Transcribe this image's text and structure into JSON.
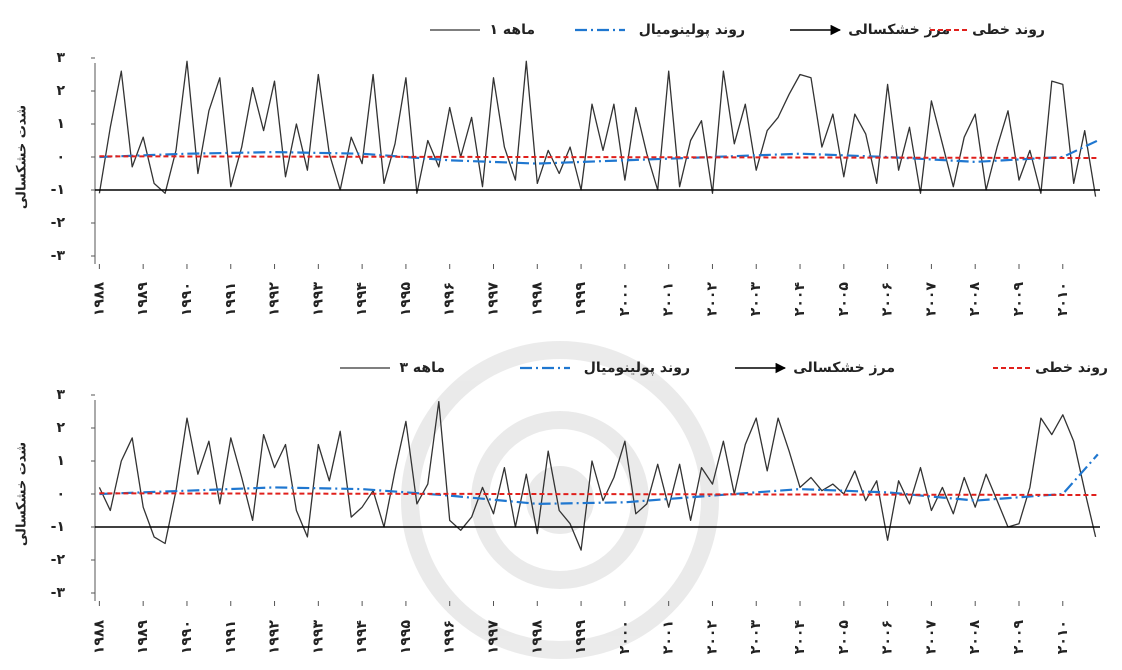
{
  "chart_data": [
    {
      "type": "line",
      "ylabel": "شدت خشکسالی",
      "xlim": [
        1987.9,
        2010.85
      ],
      "ylim": [
        -3,
        3
      ],
      "yticks": [
        {
          "value": 3,
          "label": "۳"
        },
        {
          "value": 2,
          "label": "۲"
        },
        {
          "value": 1,
          "label": "۱"
        },
        {
          "value": 0,
          "label": "۰"
        },
        {
          "value": -1,
          "label": "-۱"
        },
        {
          "value": -2,
          "label": "-۲"
        },
        {
          "value": -3,
          "label": "-۳"
        }
      ],
      "xticks": [
        {
          "value": 1988,
          "label": "۱۹۸۸"
        },
        {
          "value": 1989,
          "label": "۱۹۸۹"
        },
        {
          "value": 1990,
          "label": "۱۹۹۰"
        },
        {
          "value": 1991,
          "label": "۱۹۹۱"
        },
        {
          "value": 1992,
          "label": "۱۹۹۲"
        },
        {
          "value": 1993,
          "label": "۱۹۹۳"
        },
        {
          "value": 1994,
          "label": "۱۹۹۴"
        },
        {
          "value": 1995,
          "label": "۱۹۹۵"
        },
        {
          "value": 1996,
          "label": "۱۹۹۶"
        },
        {
          "value": 1997,
          "label": "۱۹۹۷"
        },
        {
          "value": 1998,
          "label": "۱۹۹۸"
        },
        {
          "value": 1999,
          "label": "۱۹۹۹"
        },
        {
          "value": 2000,
          "label": "۲۰۰۰"
        },
        {
          "value": 2001,
          "label": "۲۰۰۱"
        },
        {
          "value": 2002,
          "label": "۲۰۰۲"
        },
        {
          "value": 2003,
          "label": "۲۰۰۳"
        },
        {
          "value": 2004,
          "label": "۲۰۰۴"
        },
        {
          "value": 2005,
          "label": "۲۰۰۵"
        },
        {
          "value": 2006,
          "label": "۲۰۰۶"
        },
        {
          "value": 2007,
          "label": "۲۰۰۷"
        },
        {
          "value": 2008,
          "label": "۲۰۰۸"
        },
        {
          "value": 2009,
          "label": "۲۰۰۹"
        },
        {
          "value": 2010,
          "label": "۲۰۱۰"
        }
      ],
      "series": [
        {
          "name": "۱ ماهه",
          "color": "#333333",
          "dash": "solid",
          "x": [
            1988,
            1988.25,
            1988.5,
            1988.75,
            1989,
            1989.25,
            1989.5,
            1989.75,
            1990,
            1990.25,
            1990.5,
            1990.75,
            1991,
            1991.25,
            1991.5,
            1991.75,
            1992,
            1992.25,
            1992.5,
            1992.75,
            1993,
            1993.25,
            1993.5,
            1993.75,
            1994,
            1994.25,
            1994.5,
            1994.75,
            1995,
            1995.25,
            1995.5,
            1995.75,
            1996,
            1996.25,
            1996.5,
            1996.75,
            1997,
            1997.25,
            1997.5,
            1997.75,
            1998,
            1998.25,
            1998.5,
            1998.75,
            1999,
            1999.25,
            1999.5,
            1999.75,
            2000,
            2000.25,
            2000.5,
            2000.75,
            2001,
            2001.25,
            2001.5,
            2001.75,
            2002,
            2002.25,
            2002.5,
            2002.75,
            2003,
            2003.25,
            2003.5,
            2003.75,
            2004,
            2004.25,
            2004.5,
            2004.75,
            2005,
            2005.25,
            2005.5,
            2005.75,
            2006,
            2006.25,
            2006.5,
            2006.75,
            2007,
            2007.25,
            2007.5,
            2007.75,
            2008,
            2008.25,
            2008.5,
            2008.75,
            2009,
            2009.25,
            2009.5,
            2009.75,
            2010,
            2010.25,
            2010.5,
            2010.75
          ],
          "values": [
            -1.1,
            0.9,
            2.6,
            -0.3,
            0.6,
            -0.8,
            -1.1,
            0.2,
            2.9,
            -0.5,
            1.4,
            2.4,
            -0.9,
            0.3,
            2.1,
            0.8,
            2.3,
            -0.6,
            1.0,
            -0.4,
            2.5,
            0.1,
            -1.0,
            0.6,
            -0.2,
            2.5,
            -0.8,
            0.4,
            2.4,
            -1.1,
            0.5,
            -0.3,
            1.5,
            0.0,
            1.2,
            -0.9,
            2.4,
            0.3,
            -0.7,
            2.9,
            -0.8,
            0.2,
            -0.5,
            0.3,
            -1.0,
            1.6,
            0.2,
            1.6,
            -0.7,
            1.5,
            0.1,
            -1.0,
            2.6,
            -0.9,
            0.5,
            1.1,
            -1.1,
            2.6,
            0.4,
            1.6,
            -0.4,
            0.8,
            1.2,
            1.9,
            2.5,
            2.4,
            0.3,
            1.3,
            -0.6,
            1.3,
            0.7,
            -0.8,
            2.2,
            -0.4,
            0.9,
            -1.1,
            1.7,
            0.4,
            -0.9,
            0.6,
            1.3,
            -1.0,
            0.3,
            1.4,
            -0.7,
            0.2,
            -1.1,
            2.3,
            2.2,
            -0.8,
            0.8,
            -1.2
          ]
        },
        {
          "name": "روند پولینومیال",
          "color": "#1f77d0",
          "dash": "dashdot",
          "x": [
            1988,
            1990,
            1992,
            1994,
            1996,
            1998,
            2000,
            2002,
            2004,
            2006,
            2008,
            2010,
            2010.8
          ],
          "values": [
            0,
            0.1,
            0.15,
            0.1,
            -0.1,
            -0.2,
            -0.1,
            0,
            0.1,
            0,
            -0.15,
            0,
            0.5
          ]
        },
        {
          "name": "مرز خشکسالی",
          "color": "#000000",
          "dash": "arrow",
          "x": [
            1987.9,
            2010.85
          ],
          "values": [
            -1,
            -1
          ]
        },
        {
          "name": "روند خطی",
          "color": "#e0201c",
          "dash": "dashed",
          "x": [
            1988,
            2010.8
          ],
          "values": [
            0.02,
            -0.03
          ]
        }
      ]
    },
    {
      "type": "line",
      "ylabel": "شدت خشکسالی",
      "xlim": [
        1987.9,
        2010.85
      ],
      "ylim": [
        -3,
        3
      ],
      "yticks": [
        {
          "value": 3,
          "label": "۳"
        },
        {
          "value": 2,
          "label": "۲"
        },
        {
          "value": 1,
          "label": "۱"
        },
        {
          "value": 0,
          "label": "۰"
        },
        {
          "value": -1,
          "label": "-۱"
        },
        {
          "value": -2,
          "label": "-۲"
        },
        {
          "value": -3,
          "label": "-۳"
        }
      ],
      "xticks": [
        {
          "value": 1988,
          "label": "۱۹۸۸"
        },
        {
          "value": 1989,
          "label": "۱۹۸۹"
        },
        {
          "value": 1990,
          "label": "۱۹۹۰"
        },
        {
          "value": 1991,
          "label": "۱۹۹۱"
        },
        {
          "value": 1992,
          "label": "۱۹۹۲"
        },
        {
          "value": 1993,
          "label": "۱۹۹۳"
        },
        {
          "value": 1994,
          "label": "۱۹۹۴"
        },
        {
          "value": 1995,
          "label": "۱۹۹۵"
        },
        {
          "value": 1996,
          "label": "۱۹۹۶"
        },
        {
          "value": 1997,
          "label": "۱۹۹۷"
        },
        {
          "value": 1998,
          "label": "۱۹۹۸"
        },
        {
          "value": 1999,
          "label": "۱۹۹۹"
        },
        {
          "value": 2000,
          "label": "۲۰۰۰"
        },
        {
          "value": 2001,
          "label": "۲۰۰۱"
        },
        {
          "value": 2002,
          "label": "۲۰۰۲"
        },
        {
          "value": 2003,
          "label": "۲۰۰۳"
        },
        {
          "value": 2004,
          "label": "۲۰۰۴"
        },
        {
          "value": 2005,
          "label": "۲۰۰۵"
        },
        {
          "value": 2006,
          "label": "۲۰۰۶"
        },
        {
          "value": 2007,
          "label": "۲۰۰۷"
        },
        {
          "value": 2008,
          "label": "۲۰۰۸"
        },
        {
          "value": 2009,
          "label": "۲۰۰۹"
        },
        {
          "value": 2010,
          "label": "۲۰۱۰"
        }
      ],
      "series": [
        {
          "name": "۳ ماهه",
          "color": "#333333",
          "dash": "solid",
          "x": [
            1988,
            1988.25,
            1988.5,
            1988.75,
            1989,
            1989.25,
            1989.5,
            1989.75,
            1990,
            1990.25,
            1990.5,
            1990.75,
            1991,
            1991.25,
            1991.5,
            1991.75,
            1992,
            1992.25,
            1992.5,
            1992.75,
            1993,
            1993.25,
            1993.5,
            1993.75,
            1994,
            1994.25,
            1994.5,
            1994.75,
            1995,
            1995.25,
            1995.5,
            1995.75,
            1996,
            1996.25,
            1996.5,
            1996.75,
            1997,
            1997.25,
            1997.5,
            1997.75,
            1998,
            1998.25,
            1998.5,
            1998.75,
            1999,
            1999.25,
            1999.5,
            1999.75,
            2000,
            2000.25,
            2000.5,
            2000.75,
            2001,
            2001.25,
            2001.5,
            2001.75,
            2002,
            2002.25,
            2002.5,
            2002.75,
            2003,
            2003.25,
            2003.5,
            2003.75,
            2004,
            2004.25,
            2004.5,
            2004.75,
            2005,
            2005.25,
            2005.5,
            2005.75,
            2006,
            2006.25,
            2006.5,
            2006.75,
            2007,
            2007.25,
            2007.5,
            2007.75,
            2008,
            2008.25,
            2008.5,
            2008.75,
            2009,
            2009.25,
            2009.5,
            2009.75,
            2010,
            2010.25,
            2010.5,
            2010.75
          ],
          "values": [
            0.2,
            -0.5,
            1.0,
            1.7,
            -0.4,
            -1.3,
            -1.5,
            0.1,
            2.3,
            0.6,
            1.6,
            -0.3,
            1.7,
            0.5,
            -0.8,
            1.8,
            0.8,
            1.5,
            -0.5,
            -1.3,
            1.5,
            0.4,
            1.9,
            -0.7,
            -0.4,
            0.1,
            -1.0,
            0.7,
            2.2,
            -0.3,
            0.3,
            2.8,
            -0.8,
            -1.1,
            -0.7,
            0.2,
            -0.6,
            0.8,
            -1.0,
            0.6,
            -1.2,
            1.3,
            -0.5,
            -0.9,
            -1.7,
            1.0,
            -0.2,
            0.5,
            1.6,
            -0.6,
            -0.3,
            0.9,
            -0.4,
            0.9,
            -0.8,
            0.8,
            0.3,
            1.6,
            0.0,
            1.5,
            2.3,
            0.7,
            2.3,
            1.3,
            0.2,
            0.5,
            0.1,
            0.3,
            0.0,
            0.7,
            -0.2,
            0.4,
            -1.4,
            0.4,
            -0.3,
            0.8,
            -0.5,
            0.2,
            -0.6,
            0.5,
            -0.4,
            0.6,
            -0.2,
            -1.0,
            -0.9,
            0.2,
            2.3,
            1.8,
            2.4,
            1.6,
            0.1,
            -1.3
          ]
        },
        {
          "name": "روند پولینومیال",
          "color": "#1f77d0",
          "dash": "dashdot",
          "x": [
            1988,
            1990,
            1992,
            1994,
            1996,
            1998,
            2000,
            2002,
            2004,
            2006,
            2008,
            2010,
            2010.8
          ],
          "values": [
            0,
            0.1,
            0.2,
            0.15,
            -0.05,
            -0.3,
            -0.25,
            -0.05,
            0.15,
            0.05,
            -0.2,
            0,
            1.2
          ]
        },
        {
          "name": "مرز خشکسالی",
          "color": "#000000",
          "dash": "arrow",
          "x": [
            1987.9,
            2010.85
          ],
          "values": [
            -1,
            -1
          ]
        },
        {
          "name": "روند خطی",
          "color": "#e0201c",
          "dash": "dashed",
          "x": [
            1988,
            2010.8
          ],
          "values": [
            0.02,
            -0.03
          ]
        }
      ]
    }
  ]
}
